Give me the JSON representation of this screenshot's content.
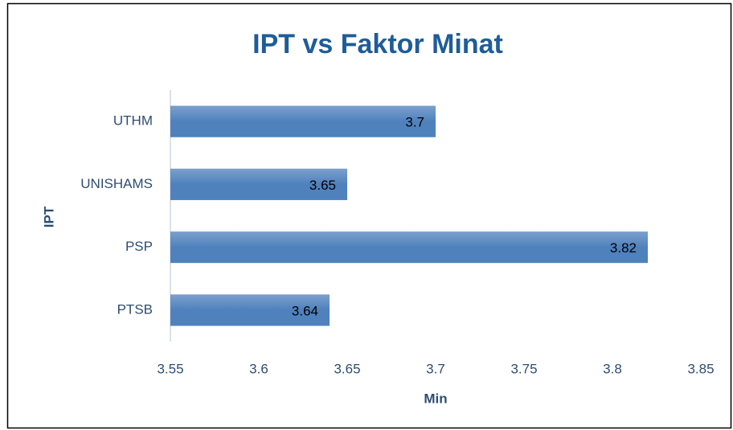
{
  "chart_data": {
    "type": "bar",
    "orientation": "horizontal",
    "title": "IPT vs Faktor Minat",
    "xlabel": "Min",
    "ylabel": "IPT",
    "categories": [
      "UTHM",
      "UNISHAMS",
      "PSP",
      "PTSB"
    ],
    "values": [
      3.7,
      3.65,
      3.82,
      3.64
    ],
    "color": "#4f81bd",
    "xlim": [
      3.55,
      3.85
    ],
    "xticks": [
      3.55,
      3.6,
      3.65,
      3.7,
      3.75,
      3.8,
      3.85
    ],
    "grid": false
  }
}
